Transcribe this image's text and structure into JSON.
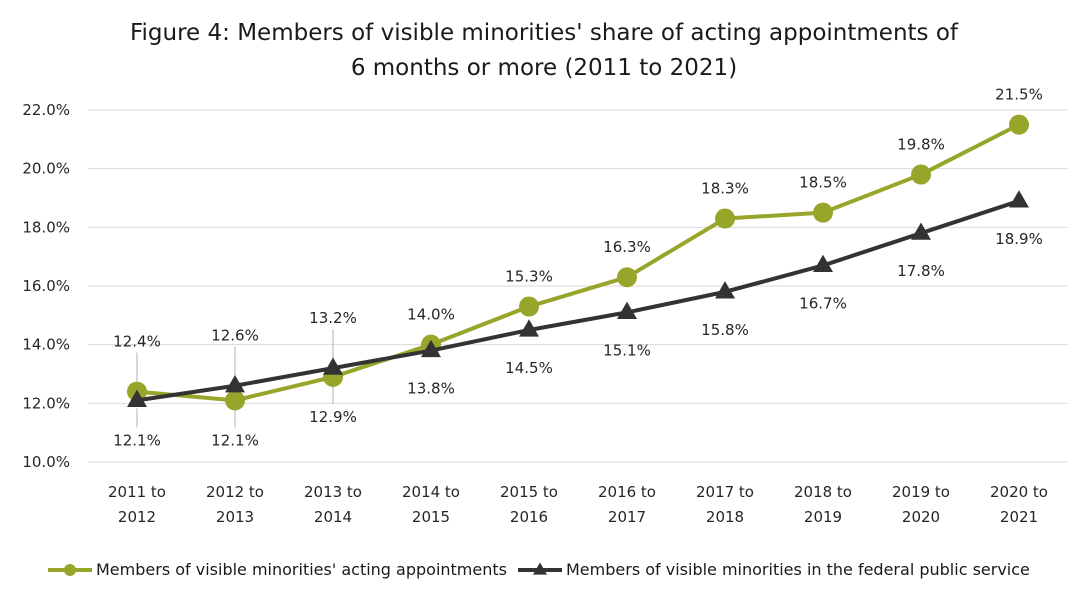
{
  "chart_data": {
    "type": "line",
    "title_lines": [
      "Figure 4: Members of visible minorities' share of acting appointments of",
      "6 months or more (2011 to 2021)"
    ],
    "categories": [
      [
        "2011 to",
        "2012"
      ],
      [
        "2012 to",
        "2013"
      ],
      [
        "2013 to",
        "2014"
      ],
      [
        "2014 to",
        "2015"
      ],
      [
        "2015 to",
        "2016"
      ],
      [
        "2016 to",
        "2017"
      ],
      [
        "2017 to",
        "2018"
      ],
      [
        "2018 to",
        "2019"
      ],
      [
        "2019 to",
        "2020"
      ],
      [
        "2020 to",
        "2021"
      ]
    ],
    "ylim": [
      10.0,
      22.0
    ],
    "yticks": [
      10.0,
      12.0,
      14.0,
      16.0,
      18.0,
      20.0,
      22.0
    ],
    "ytick_labels": [
      "10.0%",
      "12.0%",
      "14.0%",
      "16.0%",
      "18.0%",
      "20.0%",
      "22.0%"
    ],
    "grid": true,
    "legend_position": "bottom",
    "series": [
      {
        "name": "Members of visible minorities' acting appointments",
        "color": "#98a52b",
        "marker": "circle",
        "values": [
          12.4,
          12.1,
          12.9,
          14.0,
          15.3,
          16.3,
          18.3,
          18.5,
          19.8,
          21.5
        ],
        "labels": [
          "12.4%",
          "12.1%",
          "12.9%",
          "14.0%",
          "15.3%",
          "16.3%",
          "18.3%",
          "18.5%",
          "19.8%",
          "21.5%"
        ]
      },
      {
        "name": "Members of visible minorities in the federal public service",
        "color": "#333333",
        "marker": "triangle",
        "values": [
          12.1,
          12.6,
          13.2,
          13.8,
          14.5,
          15.1,
          15.8,
          16.7,
          17.8,
          18.9
        ],
        "labels": [
          "12.1%",
          "12.6%",
          "13.2%",
          "13.8%",
          "14.5%",
          "15.1%",
          "15.8%",
          "16.7%",
          "17.8%",
          "18.9%"
        ]
      }
    ]
  }
}
